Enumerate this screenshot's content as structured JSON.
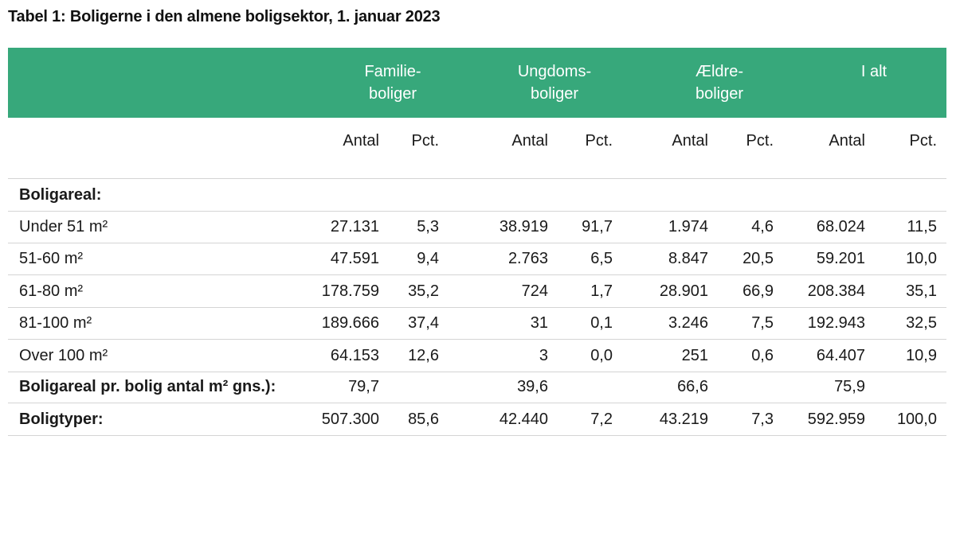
{
  "title": "Tabel 1: Boligerne i den almene boligsektor, 1. januar 2023",
  "colors": {
    "header_green": "#37a87b",
    "header_text": "#ffffff",
    "rule": "#d4d4d4"
  },
  "header": {
    "groups": [
      {
        "line1": "Familie-",
        "line2": "boliger"
      },
      {
        "line1": "Ungdoms-",
        "line2": "boliger"
      },
      {
        "line1": "Ældre-",
        "line2": "boliger"
      },
      {
        "line1": "I alt",
        "line2": ""
      }
    ],
    "sub": [
      "Antal",
      "Pct.",
      "Antal",
      "Pct.",
      "Antal",
      "Pct.",
      "Antal",
      "Pct."
    ]
  },
  "rows": [
    {
      "label": "Boligareal:",
      "bold": true,
      "cells": [
        "",
        "",
        "",
        "",
        "",
        "",
        "",
        ""
      ]
    },
    {
      "label": "Under 51 m²",
      "cells": [
        "27.131",
        "5,3",
        "38.919",
        "91,7",
        "1.974",
        "4,6",
        "68.024",
        "11,5"
      ]
    },
    {
      "label": "51-60 m²",
      "cells": [
        "47.591",
        "9,4",
        "2.763",
        "6,5",
        "8.847",
        "20,5",
        "59.201",
        "10,0"
      ]
    },
    {
      "label": "61-80 m²",
      "cells": [
        "178.759",
        "35,2",
        "724",
        "1,7",
        "28.901",
        "66,9",
        "208.384",
        "35,1"
      ]
    },
    {
      "label": "81-100 m²",
      "cells": [
        "189.666",
        "37,4",
        "31",
        "0,1",
        "3.246",
        "7,5",
        "192.943",
        "32,5"
      ]
    },
    {
      "label": "Over 100 m²",
      "cells": [
        "64.153",
        "12,6",
        "3",
        "0,0",
        "251",
        "0,6",
        "64.407",
        "10,9"
      ]
    },
    {
      "label": "Boligareal pr. bolig antal m² gns.):",
      "bold": true,
      "cells": [
        "79,7",
        "",
        "39,6",
        "",
        "66,6",
        "",
        "75,9",
        ""
      ]
    },
    {
      "label": "Boligtyper:",
      "bold": true,
      "cells": [
        "507.300",
        "85,6",
        "42.440",
        "7,2",
        "43.219",
        "7,3",
        "592.959",
        "100,0"
      ]
    }
  ]
}
